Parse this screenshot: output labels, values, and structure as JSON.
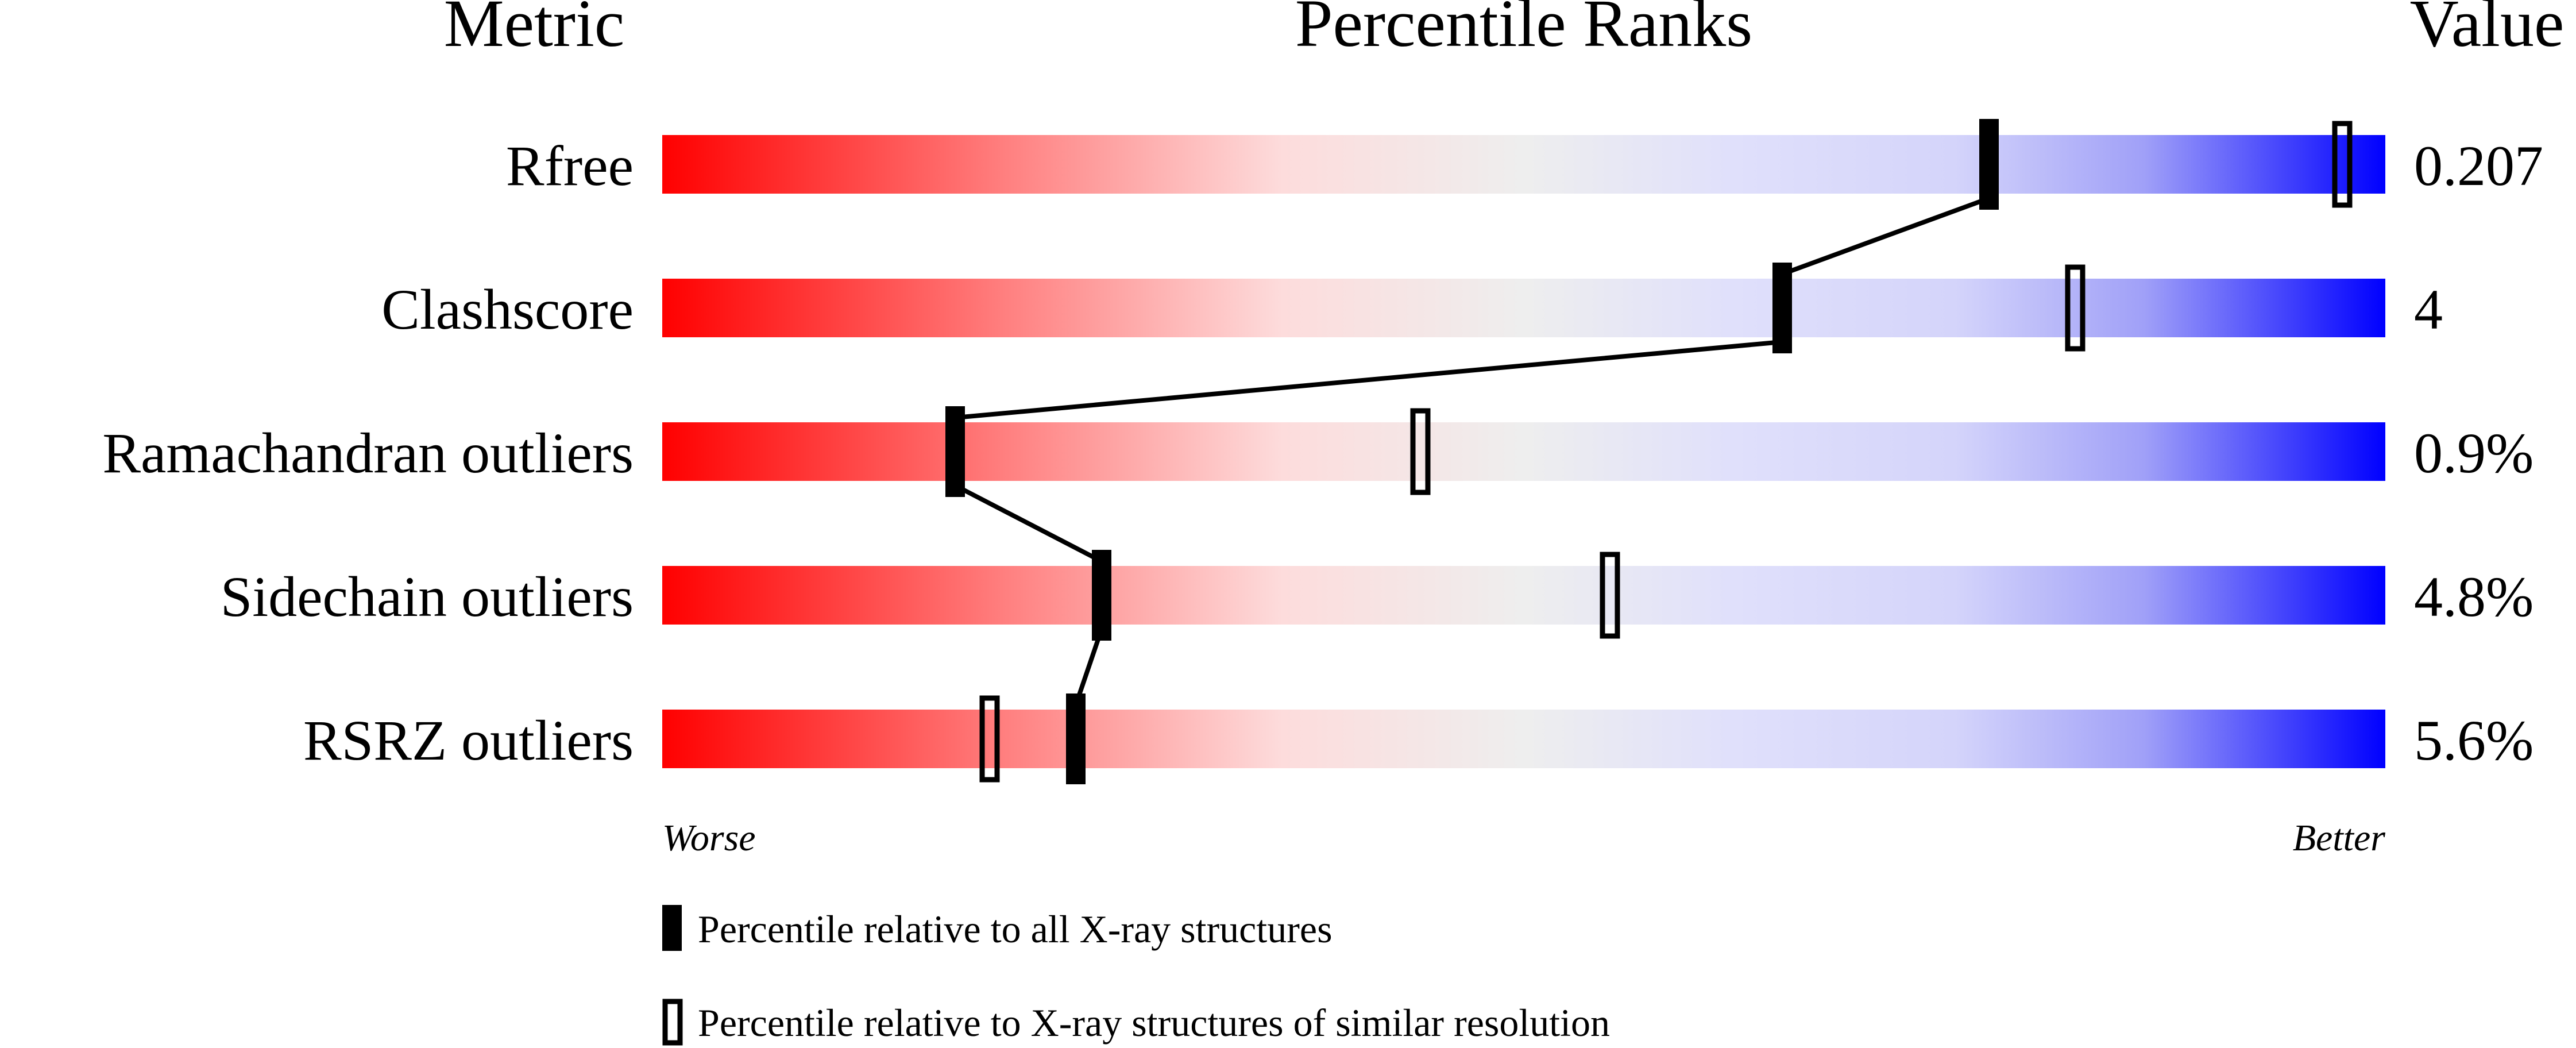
{
  "chart_data": {
    "type": "percentile-bar",
    "headers": {
      "metric": "Metric",
      "percentile": "Percentile Ranks",
      "value": "Value"
    },
    "xlim": [
      0,
      100
    ],
    "axis_labels": {
      "left": "Worse",
      "right": "Better"
    },
    "gradient_colors": [
      "#ff0000",
      "#ff8080",
      "#fddcdc",
      "#eeeeee",
      "#e0e0fb",
      "#d4d4fa",
      "#a0a0f8",
      "#0000ff"
    ],
    "rows": [
      {
        "metric": "Rfree",
        "value": "0.207",
        "percentile_all": 77,
        "percentile_similar": 97.5
      },
      {
        "metric": "Clashscore",
        "value": "4",
        "percentile_all": 65,
        "percentile_similar": 82
      },
      {
        "metric": "Ramachandran outliers",
        "value": "0.9%",
        "percentile_all": 17,
        "percentile_similar": 44
      },
      {
        "metric": "Sidechain outliers",
        "value": "4.8%",
        "percentile_all": 25.5,
        "percentile_similar": 55
      },
      {
        "metric": "RSRZ outliers",
        "value": "5.6%",
        "percentile_all": 24,
        "percentile_similar": 19
      }
    ],
    "legend": [
      {
        "marker": "filled",
        "label": "Percentile relative to all X-ray structures"
      },
      {
        "marker": "hollow",
        "label": "Percentile relative to X-ray structures of similar resolution"
      }
    ]
  }
}
